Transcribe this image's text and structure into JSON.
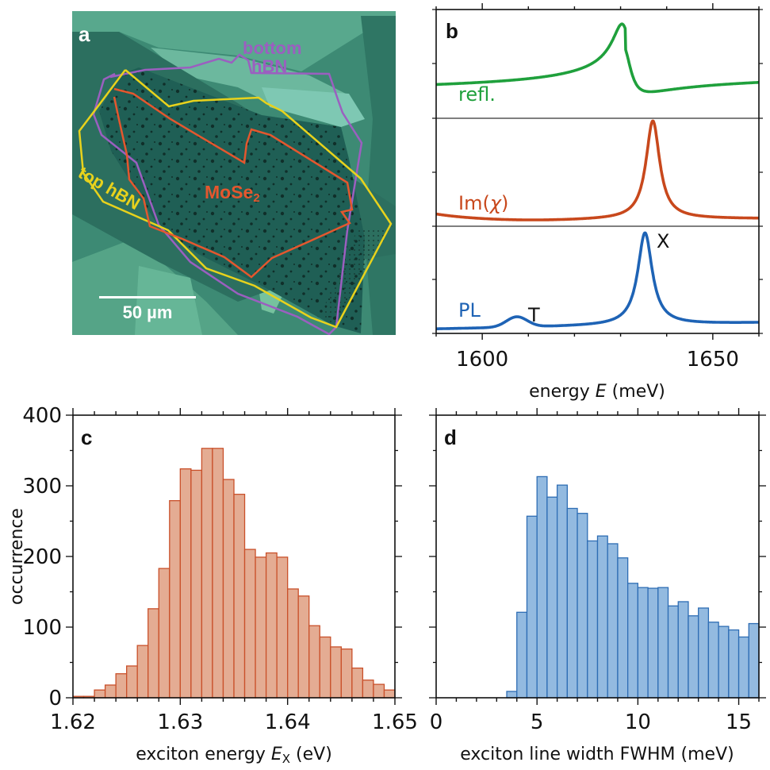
{
  "figure": {
    "panels": [
      "a",
      "b",
      "c",
      "d"
    ]
  },
  "micrograph": {
    "panel_letter": "a",
    "labels": {
      "bottom_hbn_line1": "bottom",
      "bottom_hbn_line2": "hBN",
      "top_hbn": "top hBN",
      "mose2_main": "MoSe",
      "mose2_sub": "2",
      "scale_bar": "50 µm"
    },
    "colors": {
      "bottom_hbn": "#9B5FC0",
      "top_hbn": "#E8D21C",
      "mose2": "#E4572E",
      "scale_bar": "#FFFFFF"
    }
  },
  "chart_data": [
    {
      "panel": "b",
      "type": "line",
      "title": "",
      "xlabel_prefix": "energy ",
      "xlabel_var": "E",
      "xlabel_suffix": " (meV)",
      "ylabel": "",
      "xlim": [
        1590,
        1660
      ],
      "xticks": [
        1600,
        1650
      ],
      "xticks_minor_step": 10,
      "grid": false,
      "series": [
        {
          "name": "refl.",
          "color": "#1FA03C",
          "model": "dispersive",
          "center": 1631,
          "width": 2.3,
          "baseline_left": 0.28,
          "baseline_right": 0.35
        },
        {
          "name": "Im(χ)",
          "label_main": "Im(",
          "label_chi": "χ",
          "label_end": ")",
          "color": "#C8481C",
          "model": "lorentzian",
          "center": 1637,
          "width": 1.8,
          "baseline": 0.05
        },
        {
          "name": "PL",
          "color": "#1E63B5",
          "model": "lorentzian",
          "center": 1635.3,
          "width": 1.9,
          "baseline": 0.05
        }
      ],
      "annotations": [
        {
          "text": "X",
          "x": 1639,
          "note": "exciton peak"
        },
        {
          "text": "T",
          "x": 1611,
          "note": "trion peak"
        }
      ],
      "peaks": {
        "refl_max": 1630,
        "refl_min": 1635.5,
        "im_chi": 1637,
        "pl_X": 1635,
        "pl_T": 1607.5
      }
    },
    {
      "panel": "c",
      "type": "bar",
      "title": "",
      "xlabel_prefix": "exciton energy ",
      "xlabel_var": "E",
      "xlabel_sub": "X",
      "xlabel_suffix": " (eV)",
      "ylabel": "occurrence",
      "xlim": [
        1.62,
        1.65
      ],
      "ylim": [
        0,
        400
      ],
      "xticks": [
        "1.62",
        "1.63",
        "1.64",
        "1.65"
      ],
      "yticks": [
        "0",
        "100",
        "200",
        "300",
        "400"
      ],
      "bin_width": 0.001,
      "bin_start": 1.62,
      "color_fill": "#E4AC93",
      "color_edge": "#C9502A",
      "values": [
        2,
        2,
        11,
        18,
        34,
        45,
        74,
        126,
        183,
        279,
        324,
        322,
        353,
        353,
        309,
        288,
        210,
        199,
        205,
        199,
        154,
        144,
        102,
        86,
        72,
        69,
        42,
        25,
        19,
        11
      ]
    },
    {
      "panel": "d",
      "type": "bar",
      "title": "",
      "xlabel": "exciton line width FWHM (meV)",
      "ylabel": "",
      "xlim": [
        0,
        16
      ],
      "ylim": [
        0,
        400
      ],
      "xticks": [
        "0",
        "5",
        "10",
        "15"
      ],
      "bin_width": 0.5,
      "bin_start": 3.5,
      "color_fill": "#93BAE0",
      "color_edge": "#2E6DB4",
      "values": [
        9,
        121,
        257,
        313,
        284,
        301,
        268,
        261,
        222,
        229,
        218,
        198,
        162,
        156,
        155,
        156,
        130,
        136,
        116,
        127,
        107,
        101,
        96,
        86,
        105
      ]
    }
  ]
}
